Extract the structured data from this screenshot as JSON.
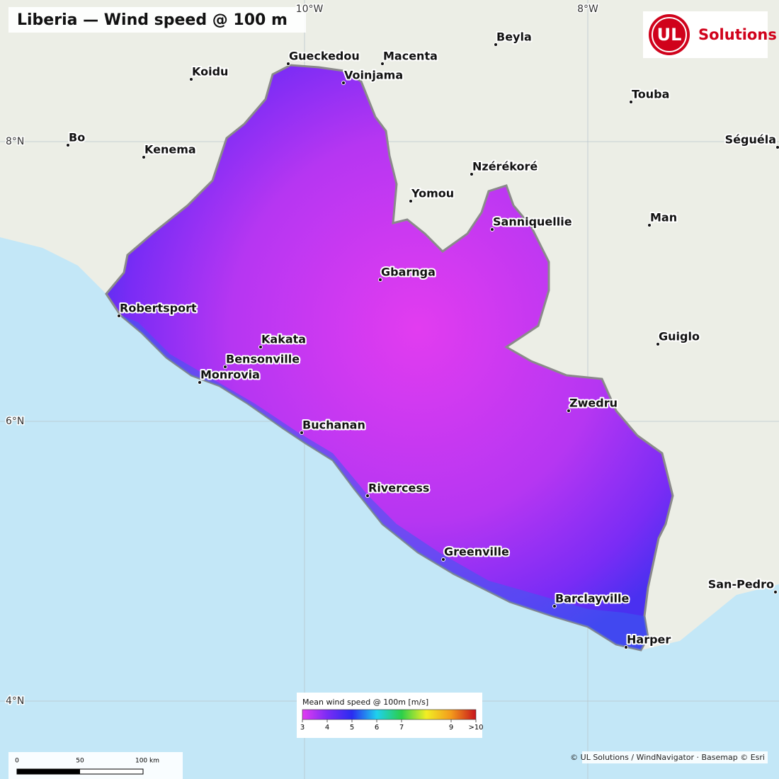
{
  "title": "Liberia — Wind speed @ 100 m",
  "logo": {
    "mark": "UL",
    "text": "Solutions"
  },
  "graticule": {
    "lon": [
      "10°W",
      "8°W"
    ],
    "lat": [
      "8°N",
      "6°N",
      "4°N"
    ]
  },
  "cities": [
    "Gueckedou",
    "Macenta",
    "Beyla",
    "Koidu",
    "Voinjama",
    "Touba",
    "Bo",
    "Kenema",
    "Séguéla",
    "Nzérékoré",
    "Yomou",
    "Sanniquellie",
    "Man",
    "Gbarnga",
    "Robertsport",
    "Kakata",
    "Guiglo",
    "Bensonville",
    "Monrovia",
    "Zwedru",
    "Buchanan",
    "Rivercess",
    "Greenville",
    "San-Pedro",
    "Barclayville",
    "Harper"
  ],
  "legend": {
    "title": "Mean wind speed @ 100m  [m/s]",
    "range": [
      3,
      10
    ],
    "ticks": [
      3,
      4,
      5,
      6,
      7,
      9,
      {
        "value": 10,
        "label": ">10"
      }
    ],
    "colors": [
      "#e23cf0",
      "#7a2cf5",
      "#2a2cf0",
      "#1fd0ee",
      "#2ccf4a",
      "#f2ee24",
      "#f39a1c",
      "#c8141c"
    ]
  },
  "scale_bar": {
    "labels": [
      "0",
      "50",
      "100 km"
    ]
  },
  "attribution": "© UL Solutions / WindNavigator · Basemap © Esri"
}
